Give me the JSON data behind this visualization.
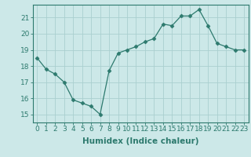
{
  "x": [
    0,
    1,
    2,
    3,
    4,
    5,
    6,
    7,
    8,
    9,
    10,
    11,
    12,
    13,
    14,
    15,
    16,
    17,
    18,
    19,
    20,
    21,
    22,
    23
  ],
  "y": [
    18.5,
    17.8,
    17.5,
    17.0,
    15.9,
    15.7,
    15.5,
    15.0,
    17.7,
    18.8,
    19.0,
    19.2,
    19.5,
    19.7,
    20.6,
    20.5,
    21.1,
    21.1,
    21.5,
    20.5,
    19.4,
    19.2,
    19.0,
    19.0
  ],
  "xlabel": "Humidex (Indice chaleur)",
  "ylim": [
    14.5,
    21.8
  ],
  "xlim": [
    -0.5,
    23.5
  ],
  "yticks": [
    15,
    16,
    17,
    18,
    19,
    20,
    21
  ],
  "xticks": [
    0,
    1,
    2,
    3,
    4,
    5,
    6,
    7,
    8,
    9,
    10,
    11,
    12,
    13,
    14,
    15,
    16,
    17,
    18,
    19,
    20,
    21,
    22,
    23
  ],
  "line_color": "#2d7a6e",
  "marker": "D",
  "marker_size": 2.5,
  "bg_color": "#cce8e8",
  "grid_color": "#aacfcf",
  "axis_color": "#2d7a6e",
  "label_fontsize": 7.5,
  "tick_fontsize": 6.5
}
